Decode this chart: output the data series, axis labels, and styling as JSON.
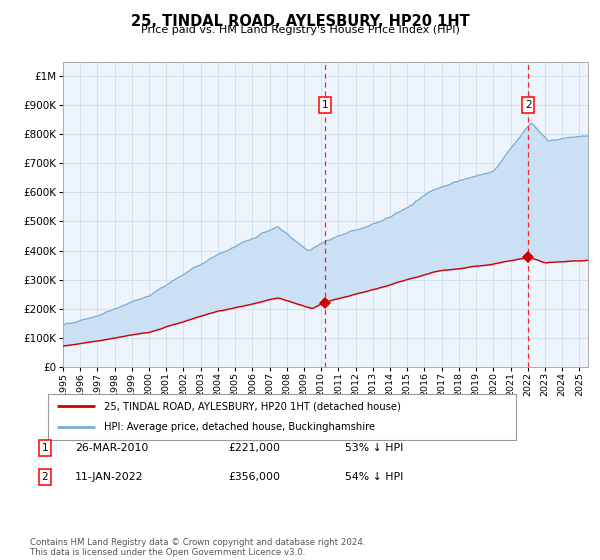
{
  "title": "25, TINDAL ROAD, AYLESBURY, HP20 1HT",
  "subtitle": "Price paid vs. HM Land Registry's House Price Index (HPI)",
  "legend_line1": "25, TINDAL ROAD, AYLESBURY, HP20 1HT (detached house)",
  "legend_line2": "HPI: Average price, detached house, Buckinghamshire",
  "annotation1_label": "1",
  "annotation1_date": "26-MAR-2010",
  "annotation1_price": "£221,000",
  "annotation1_hpi": "53% ↓ HPI",
  "annotation1_year": 2010.23,
  "annotation1_value": 221000,
  "annotation2_label": "2",
  "annotation2_date": "11-JAN-2022",
  "annotation2_price": "£356,000",
  "annotation2_hpi": "54% ↓ HPI",
  "annotation2_year": 2022.03,
  "annotation2_value": 356000,
  "footer": "Contains HM Land Registry data © Crown copyright and database right 2024.\nThis data is licensed under the Open Government Licence v3.0.",
  "hpi_fill_color": "#cce0f5",
  "hpi_line_color": "#7aadd4",
  "property_color": "#cc0000",
  "plot_bg": "#eef4fb",
  "grid_color": "#c8d8e8",
  "ylim_max": 1050000,
  "year_start": 1995,
  "year_end": 2025.5
}
